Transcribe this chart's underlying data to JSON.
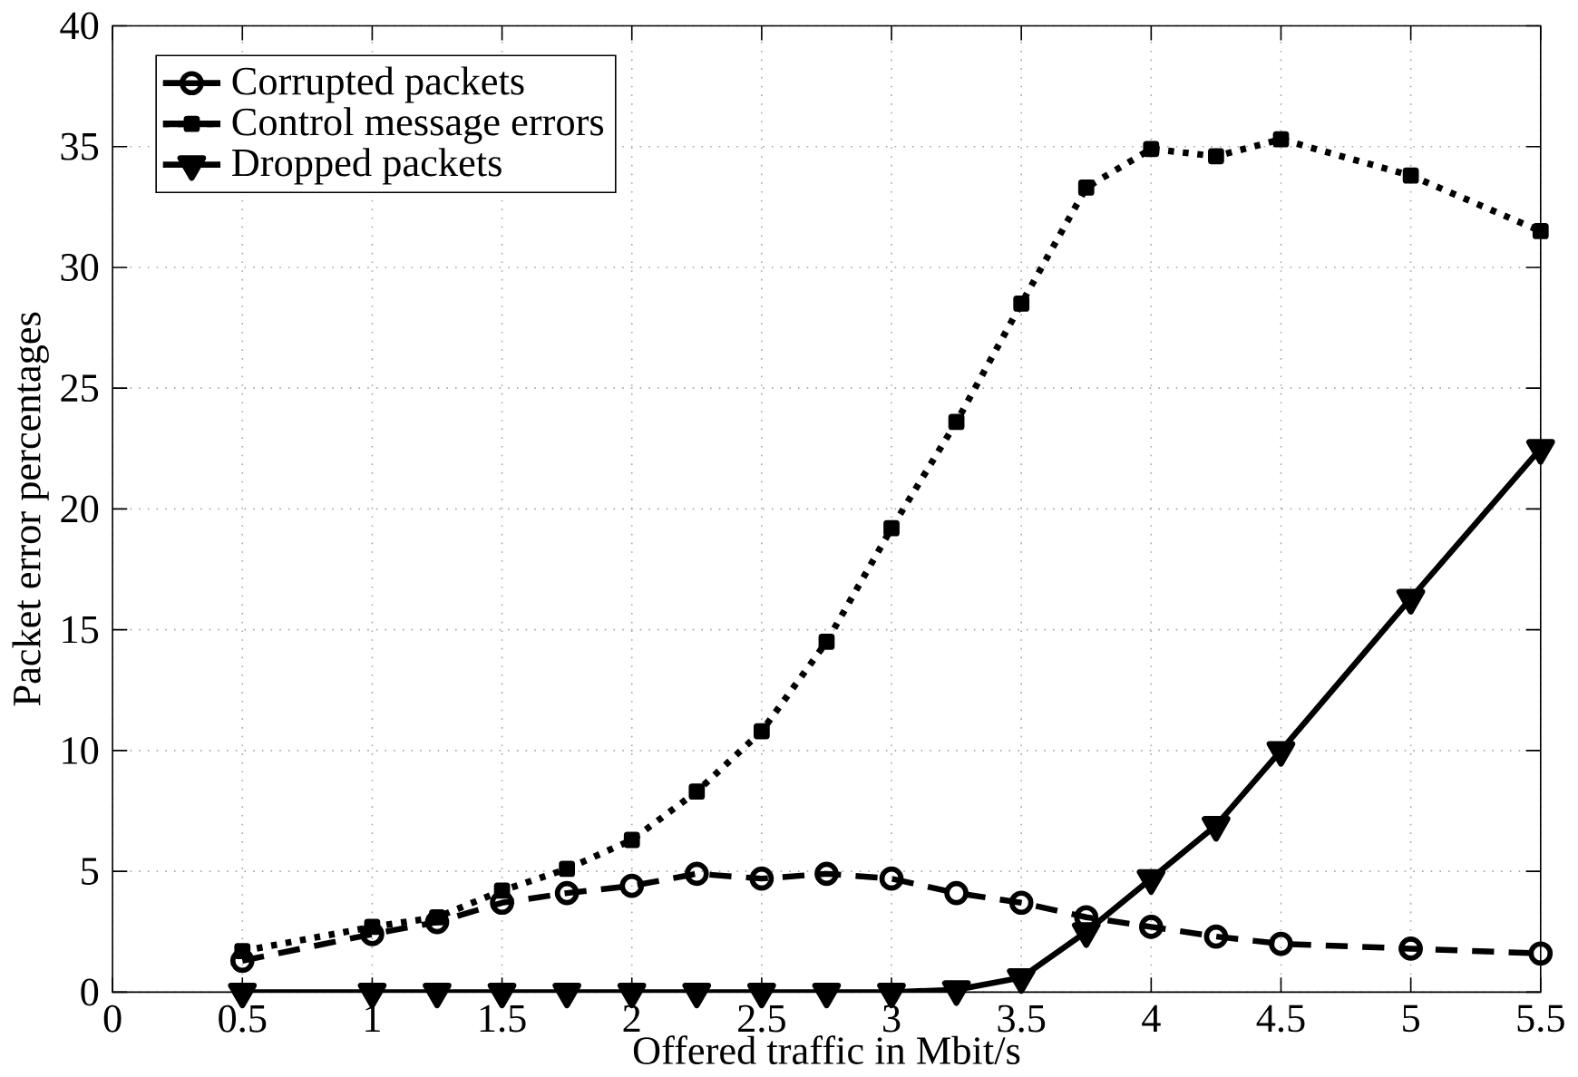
{
  "chart_data": {
    "type": "line",
    "xlabel": "Offered traffic in Mbit/s",
    "ylabel": "Packet error percentages",
    "xlim": [
      0,
      5.5
    ],
    "xticks": [
      0,
      0.5,
      1,
      1.5,
      2,
      2.5,
      3,
      3.5,
      4,
      4.5,
      5,
      5.5
    ],
    "ylim": [
      0,
      40
    ],
    "yticks": [
      0,
      5,
      10,
      15,
      20,
      25,
      30,
      35,
      40
    ],
    "grid": true,
    "legend": "top left",
    "x": [
      0.5,
      1,
      1.25,
      1.5,
      1.75,
      2,
      2.25,
      2.5,
      2.75,
      3,
      3.25,
      3.5,
      3.75,
      4,
      4.25,
      4.5,
      5,
      5.5
    ],
    "series": [
      {
        "name": "Corrupted packets",
        "color": "#000000",
        "line_style": "dashed",
        "marker": "circle",
        "values": [
          1.3,
          2.4,
          2.9,
          3.7,
          4.1,
          4.4,
          4.9,
          4.7,
          4.9,
          4.7,
          4.1,
          3.7,
          3.1,
          2.7,
          2.3,
          2.0,
          1.8,
          1.6
        ]
      },
      {
        "name": "Control message errors",
        "color": "#000000",
        "line_style": "dotted",
        "marker": "square",
        "values": [
          1.7,
          2.7,
          3.1,
          4.2,
          5.1,
          6.3,
          8.3,
          10.8,
          14.5,
          19.2,
          23.6,
          28.5,
          33.3,
          34.9,
          34.6,
          35.3,
          33.8,
          31.5
        ]
      },
      {
        "name": "Dropped packets",
        "color": "#000000",
        "line_style": "solid",
        "marker": "triangle",
        "values": [
          0,
          0,
          0,
          0,
          0,
          0,
          0,
          0,
          0,
          0,
          0.1,
          0.6,
          2.5,
          4.7,
          6.9,
          10.0,
          16.3,
          22.5
        ]
      }
    ]
  }
}
